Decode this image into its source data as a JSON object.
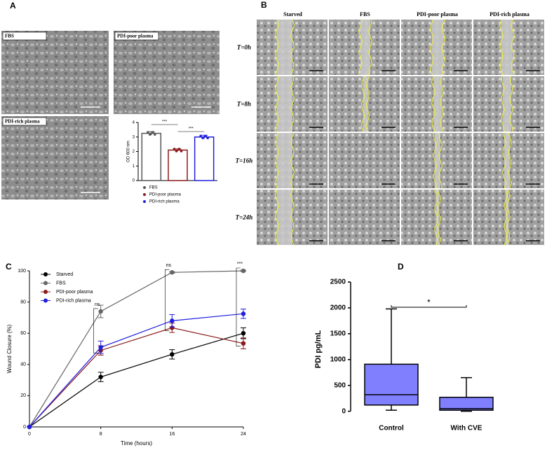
{
  "panels": {
    "a": {
      "label": "A",
      "images": [
        "FBS",
        "PDI-poor plasma",
        "PDI-rich plasma"
      ]
    },
    "b": {
      "label": "B",
      "columns": [
        "Starved",
        "FBS",
        "PDI-poor plasma",
        "PDI-rich plasma"
      ],
      "rows": [
        "T=0h",
        "T=8h",
        "T=16h",
        "T=24h"
      ]
    },
    "c": {
      "label": "C"
    },
    "d": {
      "label": "D"
    }
  },
  "chart_data": [
    {
      "type": "bar",
      "y_label": "OD 600 nm",
      "categories": [
        "FBS",
        "PDI-poor plasma",
        "PDI-rich plasma"
      ],
      "values": [
        3.25,
        2.1,
        3.0
      ],
      "errors": [
        0.12,
        0.08,
        0.12
      ],
      "colors": [
        "#555555",
        "#8b1a1a",
        "#1f1fe0"
      ],
      "ylim": [
        0,
        4
      ],
      "yticks": [
        0,
        1,
        2,
        3,
        4
      ],
      "annotations": [
        "***",
        "***"
      ]
    },
    {
      "type": "line",
      "x_label": "Time (hours)",
      "y_label": "Wound Closure (%)",
      "x": [
        0,
        8,
        16,
        24
      ],
      "series": [
        {
          "name": "Starved",
          "color": "#000000",
          "values": [
            0,
            32,
            46.5,
            60
          ],
          "errors": [
            0,
            3,
            3,
            3.5
          ]
        },
        {
          "name": "FBS",
          "color": "#666666",
          "values": [
            0,
            74,
            99,
            100
          ],
          "errors": [
            0,
            4,
            0.5,
            0.5
          ]
        },
        {
          "name": "PDI-poor plasma",
          "color": "#8b1a1a",
          "values": [
            0,
            49,
            63.5,
            53.5
          ],
          "errors": [
            0,
            3,
            3,
            3.5
          ]
        },
        {
          "name": "PDI-rich plasma",
          "color": "#1f1fe0",
          "values": [
            0,
            51,
            68,
            72.5
          ],
          "errors": [
            0,
            4,
            4,
            3
          ]
        }
      ],
      "xlim": [
        0,
        24
      ],
      "xticks": [
        0,
        8,
        16,
        24
      ],
      "ylim": [
        0,
        100
      ],
      "yticks": [
        0,
        20,
        40,
        60,
        80,
        100
      ],
      "annotations": [
        {
          "x": 8,
          "text": "ns"
        },
        {
          "x": 16,
          "text": "ns"
        },
        {
          "x": 24,
          "text": "***"
        }
      ]
    },
    {
      "type": "box",
      "y_label": "PDI pg/mL",
      "color": "#8080ff",
      "categories": [
        "Control",
        "With CVE"
      ],
      "boxes": [
        {
          "min": 20,
          "q1": 120,
          "median": 320,
          "q3": 910,
          "max": 1980
        },
        {
          "min": 0,
          "q1": 20,
          "median": 50,
          "q3": 270,
          "max": 650
        }
      ],
      "ylim": [
        -100,
        2500
      ],
      "yticks": [
        0,
        500,
        1000,
        1500,
        2000,
        2500
      ],
      "annotations": [
        "*"
      ]
    }
  ]
}
